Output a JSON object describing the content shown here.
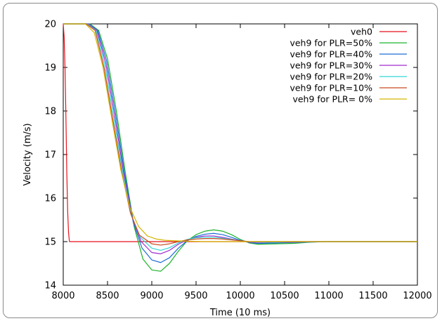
{
  "chart_data": {
    "type": "line",
    "title": "",
    "xlabel": "Time (10 ms)",
    "ylabel": "Velocity (m/s)",
    "xlim": [
      8000,
      12000
    ],
    "ylim": [
      14,
      20
    ],
    "x_ticks": [
      8000,
      8500,
      9000,
      9500,
      10000,
      10500,
      11000,
      11500,
      12000
    ],
    "y_ticks": [
      14,
      15,
      16,
      17,
      18,
      19,
      20
    ],
    "grid": false,
    "legend_position": "top-right",
    "series": [
      {
        "name": "veh0",
        "color": "#e8121b",
        "x": [
          8000,
          8010,
          8020,
          8030,
          8040,
          8050,
          8060,
          8070,
          8100,
          9000,
          10000,
          11000,
          12000
        ],
        "y": [
          20.0,
          19.7,
          19.0,
          17.9,
          16.6,
          15.7,
          15.2,
          15.0,
          15.0,
          15.0,
          15.0,
          15.0,
          15.0
        ]
      },
      {
        "name": "veh9 for PLR=50%",
        "color": "#1cb32a",
        "x": [
          8000,
          8300,
          8400,
          8500,
          8600,
          8700,
          8800,
          8900,
          9000,
          9100,
          9200,
          9300,
          9400,
          9500,
          9600,
          9700,
          9800,
          9900,
          10000,
          10100,
          10200,
          10400,
          10600,
          10800,
          11000,
          12000
        ],
        "y": [
          20.0,
          20.0,
          19.85,
          19.2,
          18.0,
          16.6,
          15.35,
          14.6,
          14.35,
          14.32,
          14.5,
          14.78,
          15.02,
          15.16,
          15.24,
          15.27,
          15.24,
          15.16,
          15.05,
          14.97,
          14.94,
          14.95,
          14.96,
          14.99,
          15.0,
          15.0
        ]
      },
      {
        "name": "veh9 for PLR=40%",
        "color": "#1c6ed6",
        "x": [
          8000,
          8290,
          8390,
          8490,
          8590,
          8690,
          8790,
          8890,
          9000,
          9100,
          9200,
          9300,
          9400,
          9500,
          9600,
          9700,
          9800,
          9900,
          10000,
          10100,
          10200,
          10400,
          10600,
          10800,
          11000,
          12000
        ],
        "y": [
          20.0,
          20.0,
          19.85,
          19.15,
          17.95,
          16.6,
          15.45,
          14.85,
          14.58,
          14.52,
          14.63,
          14.85,
          15.02,
          15.12,
          15.17,
          15.19,
          15.16,
          15.1,
          15.03,
          14.98,
          14.96,
          14.97,
          14.98,
          14.99,
          15.0,
          15.0
        ]
      },
      {
        "name": "veh9 for PLR=30%",
        "color": "#a22ad1",
        "x": [
          8000,
          8280,
          8380,
          8480,
          8580,
          8680,
          8780,
          8880,
          9000,
          9100,
          9200,
          9300,
          9400,
          9500,
          9600,
          9700,
          9800,
          9900,
          10000,
          10100,
          10200,
          10400,
          10600,
          10800,
          11000,
          12000
        ],
        "y": [
          20.0,
          20.0,
          19.85,
          19.1,
          17.9,
          16.6,
          15.55,
          15.0,
          14.75,
          14.72,
          14.8,
          14.94,
          15.04,
          15.1,
          15.13,
          15.13,
          15.1,
          15.06,
          15.02,
          14.99,
          14.98,
          14.99,
          14.99,
          15.0,
          15.0,
          15.0
        ]
      },
      {
        "name": "veh9 for PLR=20%",
        "color": "#33d6d6",
        "x": [
          8000,
          8270,
          8370,
          8470,
          8570,
          8670,
          8770,
          8870,
          9000,
          9100,
          9200,
          9300,
          9400,
          9500,
          9600,
          9700,
          9800,
          9900,
          10000,
          10100,
          10200,
          10400,
          10600,
          10800,
          11000,
          12000
        ],
        "y": [
          20.0,
          20.0,
          19.85,
          19.05,
          17.85,
          16.6,
          15.6,
          15.1,
          14.85,
          14.8,
          14.86,
          14.97,
          15.05,
          15.09,
          15.1,
          15.1,
          15.08,
          15.05,
          15.02,
          15.0,
          14.99,
          14.99,
          15.0,
          15.0,
          15.0,
          15.0
        ]
      },
      {
        "name": "veh9 for PLR=10%",
        "color": "#c74a1e",
        "x": [
          8000,
          8260,
          8360,
          8460,
          8560,
          8660,
          8760,
          8860,
          9000,
          9100,
          9200,
          9300,
          9400,
          9500,
          9600,
          9700,
          9800,
          9900,
          10000,
          10100,
          10200,
          10400,
          10600,
          10800,
          11000,
          12000
        ],
        "y": [
          20.0,
          20.0,
          19.85,
          19.0,
          17.8,
          16.6,
          15.65,
          15.15,
          14.95,
          14.92,
          14.95,
          15.0,
          15.04,
          15.06,
          15.07,
          15.07,
          15.06,
          15.04,
          15.02,
          15.0,
          15.0,
          15.0,
          15.0,
          15.0,
          15.0,
          15.0
        ]
      },
      {
        "name": "veh9 for PLR=  0%",
        "color": "#d4b400",
        "x": [
          8000,
          8250,
          8350,
          8450,
          8550,
          8650,
          8750,
          8850,
          8950,
          9050,
          9150,
          9250,
          9400,
          9600,
          9800,
          10000,
          10500,
          11000,
          12000
        ],
        "y": [
          20.0,
          20.0,
          19.8,
          19.0,
          17.8,
          16.65,
          15.8,
          15.35,
          15.13,
          15.06,
          15.03,
          15.02,
          15.01,
          15.0,
          15.0,
          15.0,
          15.0,
          15.0,
          15.0
        ]
      }
    ]
  }
}
